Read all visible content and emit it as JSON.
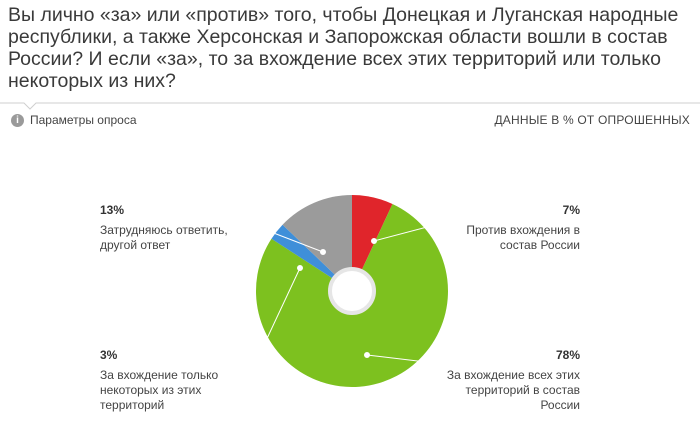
{
  "chart_data": {
    "type": "pie",
    "donut": true,
    "title": "Вы лично «за» или «против» того, чтобы Донецкая и Луганская народные республики, а также Херсонская и Запорожская области вошли в состав России? И если «за», то за вхождение всех этих территорий или только некоторых из них?",
    "info_label": "Параметры опроса",
    "units_note": "ДАННЫЕ В % ОТ ОПРОШЕННЫХ",
    "categories": [
      "Против вхождения в состав России",
      "За вхождение всех этих территорий в состав России",
      "За вхождение только некоторых из этих территорий",
      "Затрудняюсь ответить, другой ответ"
    ],
    "values": [
      7,
      78,
      3,
      13
    ],
    "value_labels": [
      "7%",
      "78%",
      "3%",
      "13%"
    ],
    "colors": [
      "#e0252b",
      "#7dc11f",
      "#3f8fd9",
      "#9b9b9b"
    ]
  }
}
